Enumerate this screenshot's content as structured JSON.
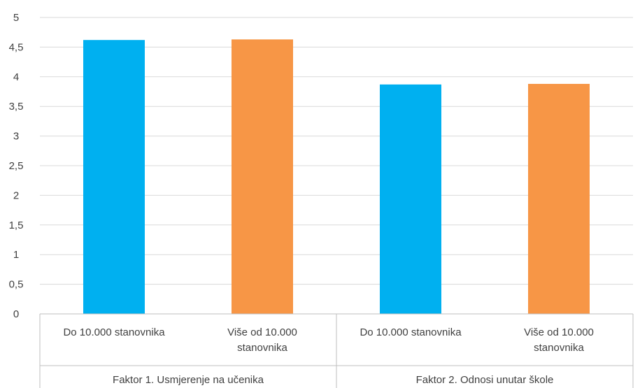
{
  "chart_data": {
    "type": "bar",
    "title": "",
    "xlabel": "",
    "ylabel": "",
    "ylim": [
      0,
      5
    ],
    "yticks": [
      "0",
      "0,5",
      "1",
      "1,5",
      "2",
      "2,5",
      "3",
      "3,5",
      "4",
      "4,5",
      "5"
    ],
    "grid": true,
    "legend": "none",
    "groups": [
      {
        "label": "Faktor 1. Usmjerenje na učenika",
        "bars": [
          {
            "label": [
              "Do 10.000 stanovnika"
            ],
            "value": 4.62,
            "color": "#00b0f0"
          },
          {
            "label": [
              "Više od 10.000",
              "stanovnika"
            ],
            "value": 4.63,
            "color": "#f79646"
          }
        ]
      },
      {
        "label": "Faktor 2. Odnosi unutar škole",
        "bars": [
          {
            "label": [
              "Do 10.000 stanovnika"
            ],
            "value": 3.87,
            "color": "#00b0f0"
          },
          {
            "label": [
              "Više od 10.000",
              "stanovnika"
            ],
            "value": 3.88,
            "color": "#f79646"
          }
        ]
      }
    ]
  }
}
